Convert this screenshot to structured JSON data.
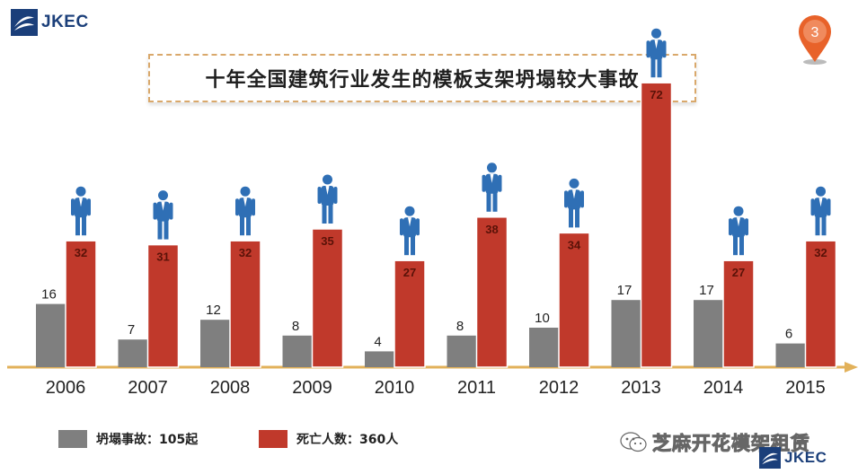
{
  "brand": {
    "name": "JKEC",
    "color": "#1b3f7a"
  },
  "title": "十年全国建筑行业发生的模板支架坍塌较大事故",
  "page_badge": "3",
  "watermark": "芝麻开花模架租赁",
  "colors": {
    "collapse": "#7f7f7f",
    "deaths": "#c0392b",
    "axis": "#e2b15a",
    "person": "#2f6fb5"
  },
  "legend": {
    "collapse": "坍塌事故：105起",
    "deaths": "死亡人数：360人"
  },
  "chart_data": {
    "type": "bar",
    "categories": [
      "2006",
      "2007",
      "2008",
      "2009",
      "2010",
      "2011",
      "2012",
      "2013",
      "2014",
      "2015"
    ],
    "series": [
      {
        "name": "坍塌事故",
        "values": [
          16,
          7,
          12,
          8,
          4,
          8,
          10,
          17,
          17,
          6
        ]
      },
      {
        "name": "死亡人数",
        "values": [
          32,
          31,
          32,
          35,
          27,
          38,
          34,
          72,
          27,
          32
        ]
      }
    ],
    "legend_position": "bottom-left",
    "grid": false
  }
}
